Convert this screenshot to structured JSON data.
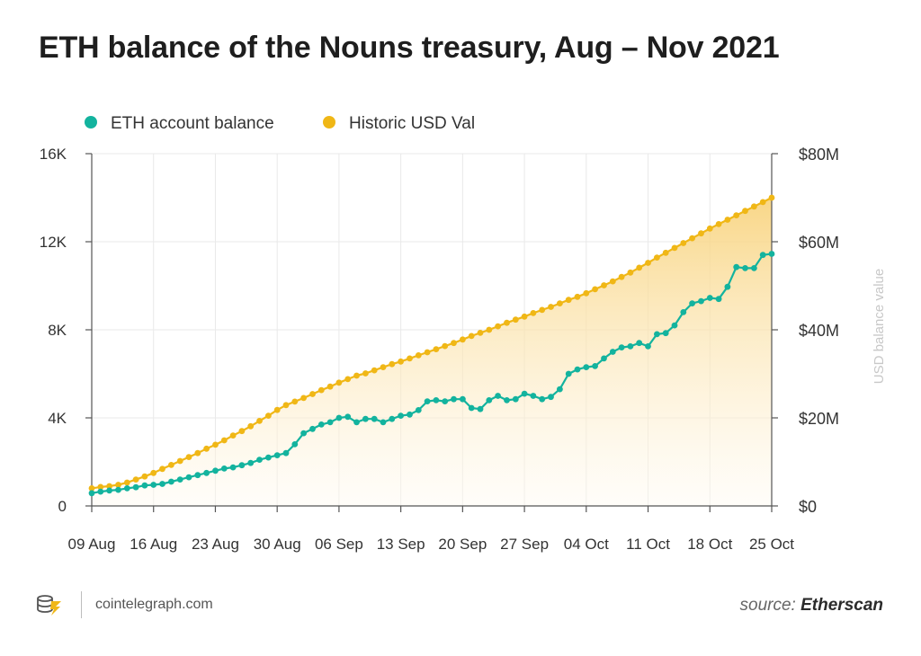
{
  "title": "ETH balance of the Nouns treasury, Aug – Nov 2021",
  "footer": {
    "site": "cointelegraph.com",
    "source_label": "source:",
    "source_name": "Etherscan"
  },
  "colors": {
    "eth": "#13b39e",
    "usd": "#f0b716",
    "grid": "#e9e9e9",
    "axis": "#555555",
    "fill_top": "#f8d27a",
    "fill_bottom": "#fffaf0",
    "logo": "#f0b716"
  },
  "chart_data": {
    "type": "line",
    "legend": [
      {
        "name": "ETH account balance",
        "color": "#13b39e"
      },
      {
        "name": "Historic USD Val",
        "color": "#f0b716"
      }
    ],
    "legend_position": "top-left",
    "grid": true,
    "x_ticks": [
      "09 Aug",
      "16 Aug",
      "23 Aug",
      "30 Aug",
      "06 Sep",
      "13 Sep",
      "20 Sep",
      "27 Sep",
      "04 Oct",
      "11 Oct",
      "18 Oct",
      "25 Oct"
    ],
    "y_left": {
      "ticks": [
        "0",
        "4K",
        "8K",
        "12K",
        "16K"
      ],
      "ylim": [
        0,
        16000
      ]
    },
    "y_right": {
      "ticks": [
        "$0",
        "$20M",
        "$40M",
        "$60M",
        "$80M"
      ],
      "ylim": [
        0,
        80000000
      ],
      "label": "USD balance value"
    },
    "x_range_days": [
      0,
      77
    ],
    "series": [
      {
        "name": "ETH account balance",
        "axis": "left",
        "x": [
          0,
          1,
          2,
          3,
          4,
          5,
          6,
          7,
          8,
          9,
          10,
          11,
          12,
          13,
          14,
          15,
          16,
          17,
          18,
          19,
          20,
          21,
          22,
          23,
          24,
          25,
          26,
          27,
          28,
          29,
          30,
          31,
          32,
          33,
          34,
          35,
          36,
          37,
          38,
          39,
          40,
          41,
          42,
          43,
          44,
          45,
          46,
          47,
          48,
          49,
          50,
          51,
          52,
          53,
          54,
          55,
          56,
          57,
          58,
          59,
          60,
          61,
          62,
          63,
          64,
          65,
          66,
          67,
          68,
          69,
          70,
          71,
          72,
          73,
          74,
          75,
          76,
          77
        ],
        "values": [
          580,
          650,
          700,
          730,
          800,
          850,
          930,
          960,
          1000,
          1100,
          1200,
          1300,
          1400,
          1500,
          1600,
          1700,
          1750,
          1850,
          1950,
          2100,
          2200,
          2300,
          2400,
          2800,
          3300,
          3500,
          3700,
          3800,
          4000,
          4050,
          3800,
          3950,
          3950,
          3800,
          3950,
          4100,
          4150,
          4350,
          4750,
          4800,
          4750,
          4850,
          4850,
          4450,
          4400,
          4800,
          5000,
          4800,
          4850,
          5100,
          5000,
          4850,
          4950,
          5300,
          6000,
          6200,
          6300,
          6350,
          6700,
          7000,
          7200,
          7250,
          7400,
          7250,
          7800,
          7850,
          8200,
          8800,
          9200,
          9300,
          9450,
          9400,
          9950,
          10850,
          10800,
          10800,
          11400,
          11450
        ]
      },
      {
        "name": "Historic USD Val",
        "axis": "right",
        "x": [
          0,
          1,
          2,
          3,
          4,
          5,
          6,
          7,
          8,
          9,
          10,
          11,
          12,
          13,
          14,
          15,
          16,
          17,
          18,
          19,
          20,
          21,
          22,
          23,
          24,
          25,
          26,
          27,
          28,
          29,
          30,
          31,
          32,
          33,
          34,
          35,
          36,
          37,
          38,
          39,
          40,
          41,
          42,
          43,
          44,
          45,
          46,
          47,
          48,
          49,
          50,
          51,
          52,
          53,
          54,
          55,
          56,
          57,
          58,
          59,
          60,
          61,
          62,
          63,
          64,
          65,
          66,
          67,
          68,
          69,
          70,
          71,
          72,
          73,
          74,
          75,
          76,
          77
        ],
        "values": [
          4.0,
          4.3,
          4.5,
          4.8,
          5.3,
          6.0,
          6.7,
          7.5,
          8.4,
          9.3,
          10.2,
          11.1,
          12.0,
          13.0,
          13.9,
          14.9,
          16.0,
          17.0,
          18.1,
          19.3,
          20.5,
          21.8,
          22.9,
          23.7,
          24.5,
          25.4,
          26.3,
          27.1,
          28.0,
          28.8,
          29.6,
          30.1,
          30.8,
          31.5,
          32.2,
          32.8,
          33.5,
          34.2,
          34.9,
          35.6,
          36.3,
          37.0,
          37.8,
          38.6,
          39.3,
          40.0,
          40.8,
          41.6,
          42.3,
          43.0,
          43.8,
          44.5,
          45.2,
          46.0,
          46.8,
          47.5,
          48.3,
          49.2,
          50.1,
          51.0,
          52.0,
          53.0,
          54.1,
          55.2,
          56.4,
          57.5,
          58.6,
          59.7,
          60.8,
          61.9,
          63.0,
          64.0,
          65.0,
          66.0,
          67.0,
          68.0,
          69.0,
          70.0
        ]
      }
    ]
  }
}
